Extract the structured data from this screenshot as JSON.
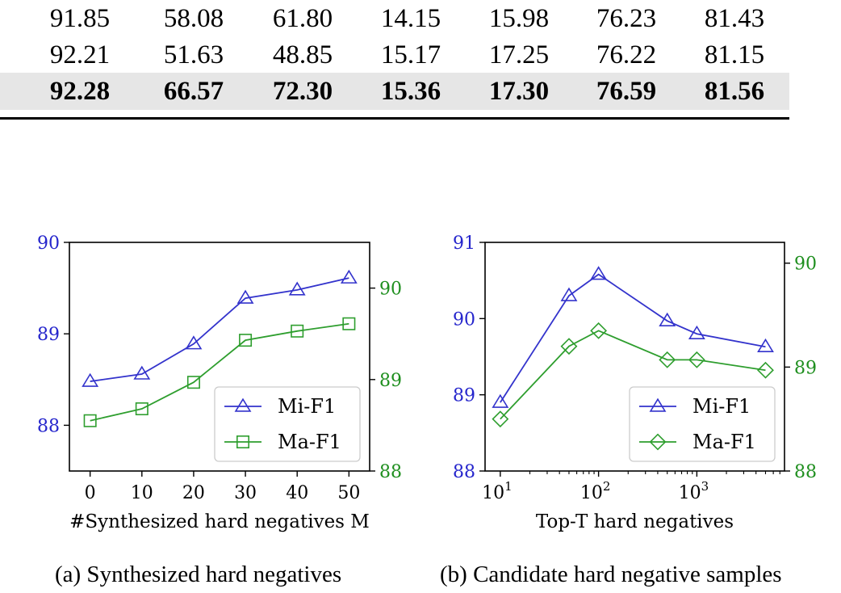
{
  "table": {
    "rows": [
      {
        "cells": [
          "91.85",
          "58.08",
          "61.80",
          "14.15",
          "15.98",
          "76.23",
          "81.43"
        ],
        "bold": false
      },
      {
        "cells": [
          "92.21",
          "51.63",
          "48.85",
          "15.17",
          "17.25",
          "76.22",
          "81.15"
        ],
        "bold": false
      },
      {
        "cells": [
          "92.28",
          "66.57",
          "72.30",
          "15.36",
          "17.30",
          "76.59",
          "81.56"
        ],
        "bold": true
      }
    ]
  },
  "captions": {
    "a": "(a) Synthesized hard negatives",
    "b": "(b) Candidate hard negative samples"
  },
  "chart_data": [
    {
      "type": "line",
      "xlabel": "#Synthesized hard negatives M",
      "x": [
        0,
        10,
        20,
        30,
        40,
        50
      ],
      "xticks": [
        "0",
        "10",
        "20",
        "30",
        "40",
        "50"
      ],
      "xlim": [
        -4,
        54
      ],
      "y_left": {
        "lim": [
          87.5,
          90
        ],
        "ticks": [
          "88",
          "89",
          "90"
        ],
        "color": "#2525cc"
      },
      "y_right": {
        "lim": [
          88,
          90.5
        ],
        "ticks": [
          "88",
          "89",
          "90"
        ],
        "color": "#1f8f1f"
      },
      "legend": "bottom-right",
      "series": [
        {
          "name": "Mi-F1",
          "axis": "left",
          "marker": "triangle",
          "color": "#3333cc",
          "values": [
            88.48,
            88.56,
            88.89,
            89.39,
            89.48,
            89.61
          ]
        },
        {
          "name": "Ma-F1",
          "axis": "right",
          "marker": "square",
          "color": "#2e9e2e",
          "values": [
            88.55,
            88.68,
            88.97,
            89.43,
            89.53,
            89.61
          ]
        }
      ]
    },
    {
      "type": "line",
      "xlabel": "Top-T hard negatives",
      "xscale": "log",
      "x": [
        10,
        50,
        100,
        500,
        1000,
        5000
      ],
      "xticks": [
        "10^1",
        "10^2",
        "10^3"
      ],
      "xlim": [
        7,
        7800
      ],
      "y_left": {
        "lim": [
          88,
          91
        ],
        "ticks": [
          "88",
          "89",
          "90",
          "91"
        ],
        "color": "#2525cc"
      },
      "y_right": {
        "lim": [
          88,
          90.2
        ],
        "ticks": [
          "88",
          "89",
          "90"
        ],
        "color": "#1f8f1f"
      },
      "legend": "bottom-right",
      "series": [
        {
          "name": "Mi-F1",
          "axis": "left",
          "marker": "triangle",
          "color": "#3333cc",
          "values": [
            88.9,
            90.3,
            90.58,
            89.97,
            89.8,
            89.63
          ]
        },
        {
          "name": "Ma-F1",
          "axis": "right",
          "marker": "diamond",
          "color": "#2e9e2e",
          "values": [
            88.5,
            89.2,
            89.35,
            89.07,
            89.07,
            88.97
          ]
        }
      ]
    }
  ]
}
